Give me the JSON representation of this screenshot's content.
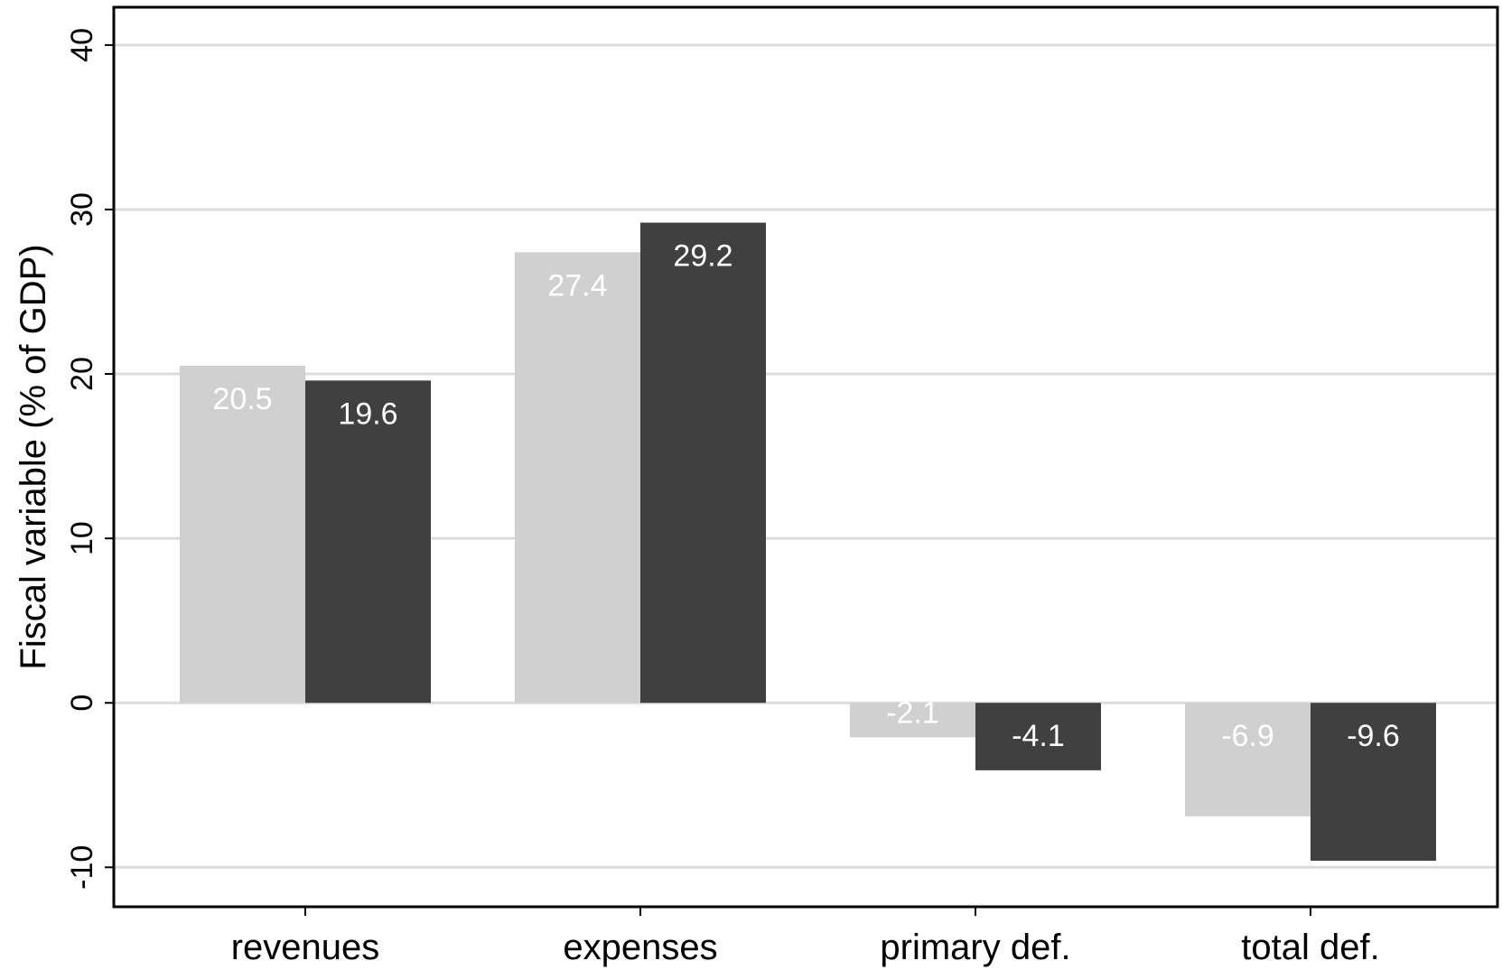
{
  "chart_data": {
    "type": "bar",
    "title": "",
    "xlabel": "",
    "ylabel": "Fiscal variable (% of GDP)",
    "categories": [
      "revenues",
      "expenses",
      "primary def.",
      "total def."
    ],
    "series": [
      {
        "values": [
          20.5,
          27.4,
          -2.1,
          -6.9
        ],
        "color": "#d0d0d0"
      },
      {
        "values": [
          19.6,
          29.2,
          -4.1,
          -9.6
        ],
        "color": "#404040"
      }
    ],
    "data_labels": [
      [
        "20.5",
        "27.4",
        "-2.1",
        "-6.9"
      ],
      [
        "19.6",
        "29.2",
        "-4.1",
        "-9.6"
      ]
    ],
    "yticks": [
      -10,
      0,
      10,
      20,
      30,
      40
    ],
    "ytick_labels": [
      "-10",
      "0",
      "10",
      "20",
      "30",
      "40"
    ],
    "ylim": [
      -12.4,
      42.3
    ],
    "grid": true,
    "legend": "none",
    "colors": {
      "gridline": "#dcdcdc",
      "frame": "#000000",
      "data_label": "#ffffff"
    }
  }
}
